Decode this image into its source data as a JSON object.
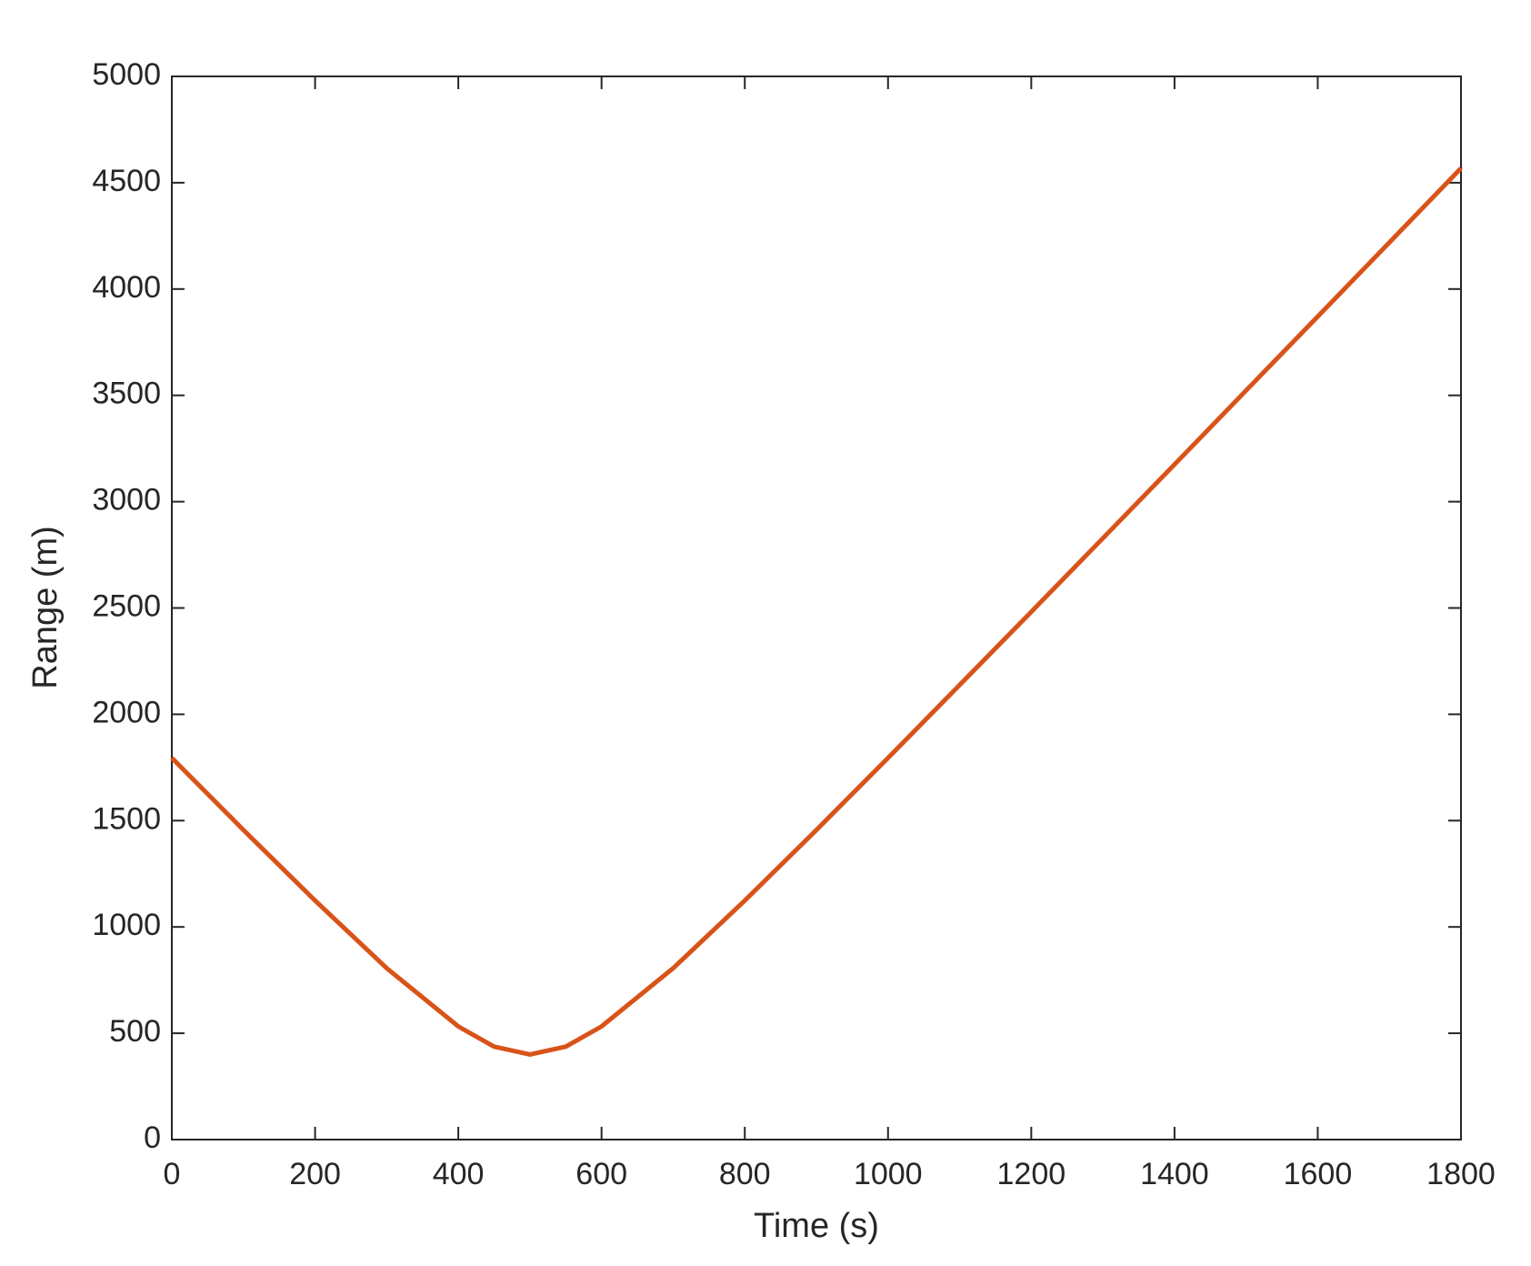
{
  "chart_data": {
    "type": "line",
    "xlabel": "Time (s)",
    "ylabel": "Range (m)",
    "x": [
      0,
      100,
      200,
      300,
      400,
      450,
      500,
      550,
      600,
      700,
      800,
      900,
      1000,
      1100,
      1200,
      1300,
      1400,
      1500,
      1600,
      1700,
      1800
    ],
    "series": [
      {
        "color": "#d95319",
        "values": [
          1795,
          1456,
          1124,
          806,
          532,
          437,
          400,
          437,
          532,
          806,
          1124,
          1456,
          1795,
          2138,
          2482,
          2828,
          3175,
          3523,
          3871,
          4219,
          4568
        ]
      }
    ],
    "xlim": [
      0,
      1800
    ],
    "xticks": [
      0,
      200,
      400,
      600,
      800,
      1000,
      1200,
      1400,
      1600,
      1800
    ],
    "ylim": [
      0,
      5000
    ],
    "yticks": [
      0,
      500,
      1000,
      1500,
      2000,
      2500,
      3000,
      3500,
      4000,
      4500,
      5000
    ],
    "grid": false
  }
}
